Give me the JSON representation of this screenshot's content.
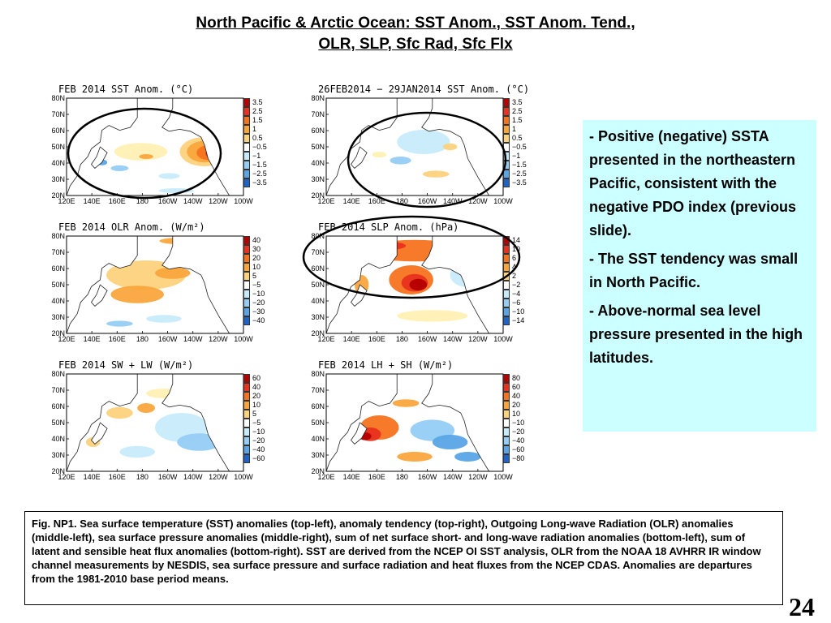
{
  "title": {
    "line1": "North Pacific & Arctic Ocean: SST Anom., SST Anom. Tend.,",
    "line2": "OLR, SLP, Sfc Rad, Sfc Flx"
  },
  "axes": {
    "lat_labels": [
      "80N",
      "70N",
      "60N",
      "50N",
      "40N",
      "30N",
      "20N"
    ],
    "lon_labels": [
      "120E",
      "140E",
      "160E",
      "180",
      "160W",
      "140W",
      "120W",
      "100W"
    ]
  },
  "colors": {
    "dark_red": "#b40000",
    "red": "#e8321e",
    "orange_red": "#f5731e",
    "orange": "#faa53c",
    "light_orange": "#fcd27d",
    "pale_yellow": "#fff0b4",
    "white": "#ffffff",
    "pale_blue": "#c8ebfa",
    "light_blue": "#96cdf5",
    "blue": "#5aa5e6",
    "dark_blue": "#1e64c8",
    "land": "#ffffff",
    "coast": "#222222"
  },
  "panels": [
    {
      "id": "sst-anom",
      "title": "FEB 2014 SST Anom. (°C)",
      "colorbar": [
        "3.5",
        "2.5",
        "1.5",
        "1",
        "0.5",
        "−0.5",
        "−1",
        "−1.5",
        "−2.5",
        "−3.5"
      ],
      "colorbar_colors": [
        "#b40000",
        "#e8321e",
        "#f5731e",
        "#faa53c",
        "#fcd27d",
        "#ffffff",
        "#c8ebfa",
        "#96cdf5",
        "#5aa5e6",
        "#1e64c8"
      ]
    },
    {
      "id": "sst-tend",
      "title": "26FEB2014 − 29JAN2014 SST Anom. (°C)",
      "colorbar": [
        "3.5",
        "2.5",
        "1.5",
        "1",
        "0.5",
        "−0.5",
        "−1",
        "−1.5",
        "−2.5",
        "−3.5"
      ],
      "colorbar_colors": [
        "#b40000",
        "#e8321e",
        "#f5731e",
        "#faa53c",
        "#fcd27d",
        "#ffffff",
        "#c8ebfa",
        "#96cdf5",
        "#5aa5e6",
        "#1e64c8"
      ]
    },
    {
      "id": "olr",
      "title": "FEB 2014 OLR Anom. (W/m²)",
      "colorbar": [
        "40",
        "30",
        "20",
        "10",
        "5",
        "−5",
        "−10",
        "−20",
        "−30",
        "−40"
      ],
      "colorbar_colors": [
        "#b40000",
        "#e8321e",
        "#f5731e",
        "#faa53c",
        "#fcd27d",
        "#ffffff",
        "#c8ebfa",
        "#96cdf5",
        "#5aa5e6",
        "#1e64c8"
      ]
    },
    {
      "id": "slp",
      "title": "FEB 2014 SLP Anom. (hPa)",
      "colorbar": [
        "14",
        "10",
        "6",
        "4",
        "2",
        "−2",
        "−4",
        "−6",
        "−10",
        "−14"
      ],
      "colorbar_colors": [
        "#b40000",
        "#e8321e",
        "#f5731e",
        "#faa53c",
        "#fcd27d",
        "#ffffff",
        "#c8ebfa",
        "#96cdf5",
        "#5aa5e6",
        "#1e64c8"
      ]
    },
    {
      "id": "sw-lw",
      "title": "FEB 2014 SW + LW (W/m²)",
      "colorbar": [
        "60",
        "40",
        "20",
        "10",
        "5",
        "−5",
        "−10",
        "−20",
        "−40",
        "−60"
      ],
      "colorbar_colors": [
        "#b40000",
        "#e8321e",
        "#f5731e",
        "#faa53c",
        "#fcd27d",
        "#ffffff",
        "#c8ebfa",
        "#96cdf5",
        "#5aa5e6",
        "#1e64c8"
      ]
    },
    {
      "id": "lh-sh",
      "title": "FEB 2014 LH + SH (W/m²)",
      "colorbar": [
        "80",
        "60",
        "40",
        "20",
        "10",
        "−10",
        "−20",
        "−40",
        "−60",
        "−80"
      ],
      "colorbar_colors": [
        "#b40000",
        "#e8321e",
        "#f5731e",
        "#faa53c",
        "#fcd27d",
        "#ffffff",
        "#c8ebfa",
        "#96cdf5",
        "#5aa5e6",
        "#1e64c8"
      ]
    }
  ],
  "notes": [
    {
      "dash": "- ",
      "text": "Positive (negative) SSTA presented in the northeastern Pacific, consistent with the negative PDO index (previous slide)."
    },
    {
      "dash": "- ",
      "text": "The SST tendency was small in North Pacific."
    },
    {
      "dash": "-  ",
      "text": "Above-normal sea level pressure presented in the high latitudes."
    }
  ],
  "caption": "Fig. NP1. Sea surface temperature (SST) anomalies (top-left), anomaly tendency (top-right), Outgoing Long-wave Radiation (OLR) anomalies (middle-left), sea surface pressure anomalies (middle-right), sum of net surface short- and long-wave radiation anomalies (bottom-left), sum of latent and sensible heat flux anomalies (bottom-right). SST are derived from the NCEP OI SST analysis, OLR from the NOAA 18 AVHRR IR window channel measurements by NESDIS, sea surface pressure and surface radiation and heat fluxes from the NCEP CDAS. Anomalies are departures from the 1981-2010  base period means.",
  "page_number": "24"
}
